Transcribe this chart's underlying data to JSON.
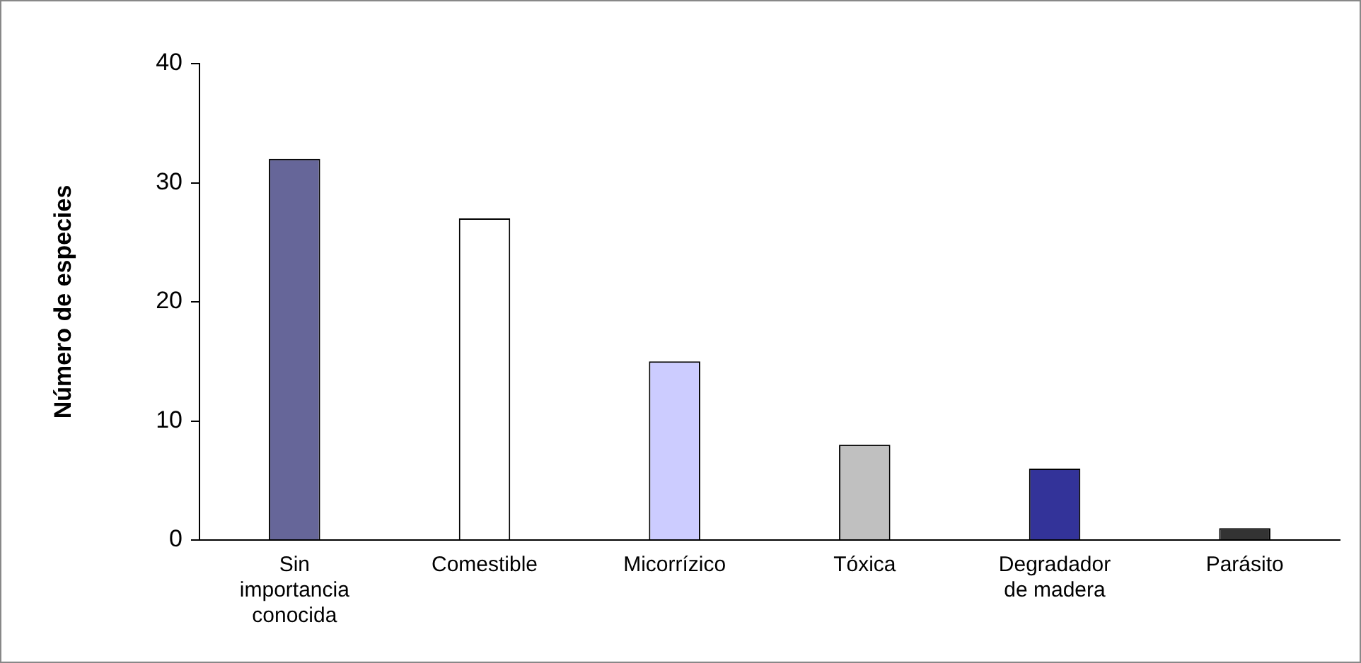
{
  "chart_data": {
    "type": "bar",
    "ylabel": "Número de especies",
    "categories": [
      "Sin importancia conocida",
      "Comestible",
      "Micorrízico",
      "Tóxica",
      "Degradador de madera",
      "Parásito"
    ],
    "values": [
      32,
      27,
      15,
      8,
      6,
      1
    ],
    "colors": [
      "#666699",
      "#ffffff",
      "#ccccff",
      "#c0c0c0",
      "#333399",
      "#333333"
    ],
    "ylim": [
      0,
      40
    ],
    "yticks": [
      0,
      10,
      20,
      30,
      40
    ],
    "grid": false,
    "legend": false
  }
}
